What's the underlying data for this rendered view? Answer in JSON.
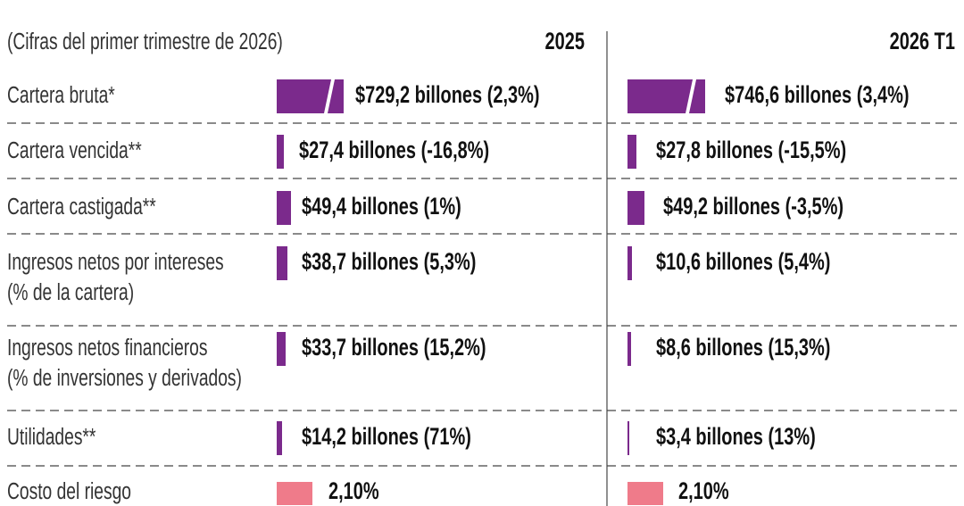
{
  "header": {
    "note": "(Cifras del primer trimestre de 2026)",
    "col1": "2025",
    "col2": "2026 T1"
  },
  "rows": [
    {
      "label": [
        "Cartera bruta*"
      ],
      "v2025": "$729,2 billones (2,3%)",
      "v2026": "$746,6 billones (3,4%)"
    },
    {
      "label": [
        "Cartera vencida**"
      ],
      "v2025": "$27,4 billones (-16,8%)",
      "v2026": "$27,8 billones (-15,5%)"
    },
    {
      "label": [
        "Cartera castigada**"
      ],
      "v2025": "$49,4 billones (1%)",
      "v2026": "$49,2 billones (-3,5%)"
    },
    {
      "label": [
        "Ingresos netos por intereses",
        "(% de la cartera)"
      ],
      "v2025": "$38,7 billones (5,3%)",
      "v2026": "$10,6 billones (5,4%)"
    },
    {
      "label": [
        "Ingresos netos financieros",
        "(% de inversiones y derivados)"
      ],
      "v2025": "$33,7 billones (15,2%)",
      "v2026": "$8,6 billones (15,3%)"
    },
    {
      "label": [
        "Utilidades**"
      ],
      "v2025": "$14,2 billones (71%)",
      "v2026": "$3,4 billones (13%)"
    },
    {
      "label": [
        "Costo del riesgo"
      ],
      "v2025": "2,10%",
      "v2026": "2,10%"
    }
  ]
}
